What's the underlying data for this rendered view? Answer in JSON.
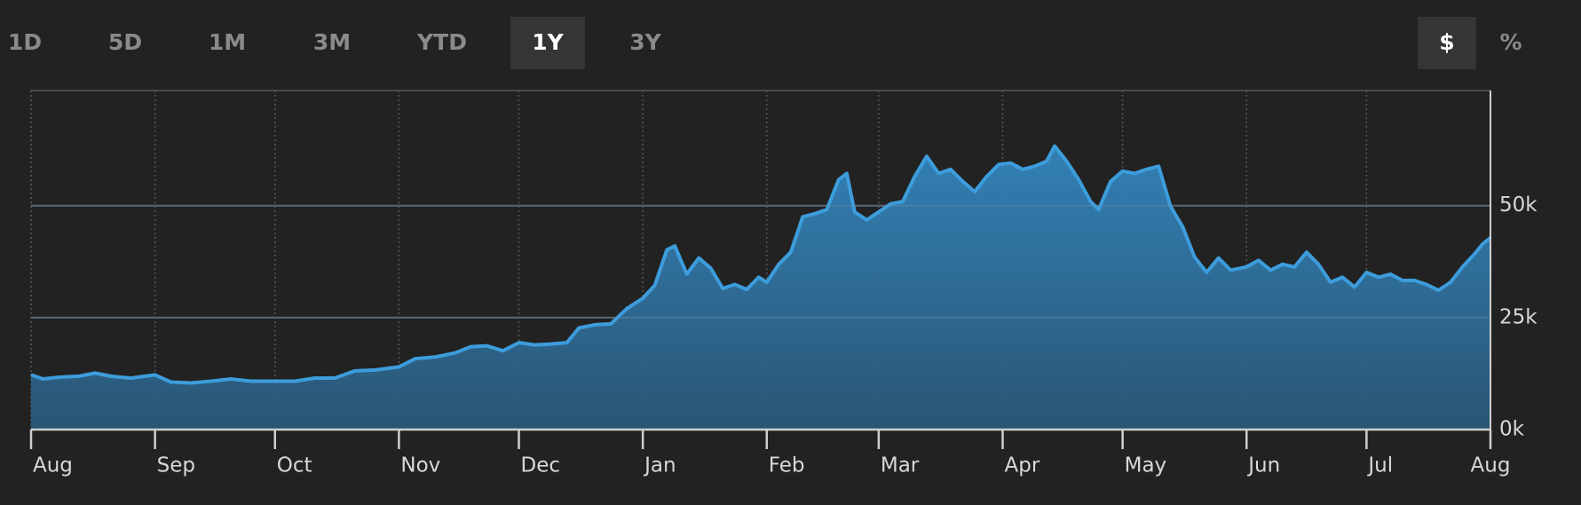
{
  "controls": {
    "ranges": [
      {
        "label": "1D"
      },
      {
        "label": "5D"
      },
      {
        "label": "1M"
      },
      {
        "label": "3M"
      },
      {
        "label": "YTD"
      },
      {
        "label": "1Y",
        "selected": true
      },
      {
        "label": "3Y"
      }
    ],
    "units": [
      {
        "label": "$",
        "selected": true
      },
      {
        "label": "%"
      }
    ]
  },
  "chart_data": {
    "type": "area",
    "color": "#3d9ddc",
    "grid": true,
    "xlim": [
      0,
      365
    ],
    "xticks": [
      {
        "value": 0,
        "label": "Aug"
      },
      {
        "value": 31,
        "label": "Sep"
      },
      {
        "value": 61,
        "label": "Oct"
      },
      {
        "value": 92,
        "label": "Nov"
      },
      {
        "value": 122,
        "label": "Dec"
      },
      {
        "value": 153,
        "label": "Jan"
      },
      {
        "value": 184,
        "label": "Feb"
      },
      {
        "value": 212,
        "label": "Mar"
      },
      {
        "value": 243,
        "label": "Apr"
      },
      {
        "value": 273,
        "label": "May"
      },
      {
        "value": 304,
        "label": "Jun"
      },
      {
        "value": 334,
        "label": "Jul"
      },
      {
        "value": 365,
        "label": "Aug"
      }
    ],
    "ylim": [
      0,
      75700
    ],
    "yticks": [
      {
        "value": 0,
        "label": "0k"
      },
      {
        "value": 25000,
        "label": "25k"
      },
      {
        "value": 50000,
        "label": "50k"
      }
    ],
    "x": [
      0,
      3,
      7,
      12,
      16,
      20,
      25,
      31,
      35,
      40,
      45,
      50,
      55,
      61,
      66,
      71,
      76,
      81,
      86,
      92,
      96,
      101,
      106,
      110,
      114,
      118,
      122,
      126,
      130,
      134,
      137,
      141,
      145,
      149,
      153,
      156,
      159,
      161,
      164,
      167,
      170,
      173,
      176,
      179,
      182,
      184,
      187,
      190,
      193,
      196,
      199,
      202,
      204,
      206,
      209,
      212,
      215,
      218,
      221,
      224,
      227,
      230,
      233,
      236,
      239,
      242,
      245,
      248,
      251,
      254,
      256,
      259,
      262,
      265,
      267,
      270,
      273,
      276,
      279,
      282,
      285,
      288,
      291,
      294,
      297,
      300,
      304,
      307,
      310,
      313,
      316,
      319,
      322,
      325,
      328,
      331,
      334,
      337,
      340,
      343,
      346,
      349,
      352,
      355,
      358,
      361,
      363,
      365
    ],
    "values": [
      12200,
      11300,
      11700,
      11900,
      12600,
      11900,
      11500,
      12200,
      10600,
      10400,
      10800,
      11300,
      10800,
      10800,
      10800,
      11500,
      11500,
      13100,
      13300,
      14000,
      15800,
      16200,
      17100,
      18500,
      18700,
      17600,
      19400,
      18900,
      19100,
      19400,
      22700,
      23400,
      23600,
      27000,
      29300,
      32200,
      40100,
      41000,
      34700,
      38300,
      36000,
      31500,
      32400,
      31300,
      34000,
      32900,
      36900,
      39600,
      47500,
      48200,
      49100,
      55800,
      57200,
      48600,
      46800,
      48600,
      50400,
      50900,
      56500,
      61000,
      57200,
      58100,
      55400,
      53100,
      56500,
      59200,
      59500,
      58100,
      58800,
      59900,
      63300,
      59900,
      55800,
      50900,
      49100,
      55400,
      57700,
      57200,
      58100,
      58800,
      49800,
      45300,
      38500,
      35100,
      38300,
      35600,
      36300,
      37800,
      35600,
      36900,
      36300,
      39600,
      36900,
      32900,
      34000,
      31800,
      35100,
      34000,
      34700,
      33300,
      33300,
      32400,
      31100,
      32900,
      36300,
      39200,
      41400,
      42800
    ]
  }
}
